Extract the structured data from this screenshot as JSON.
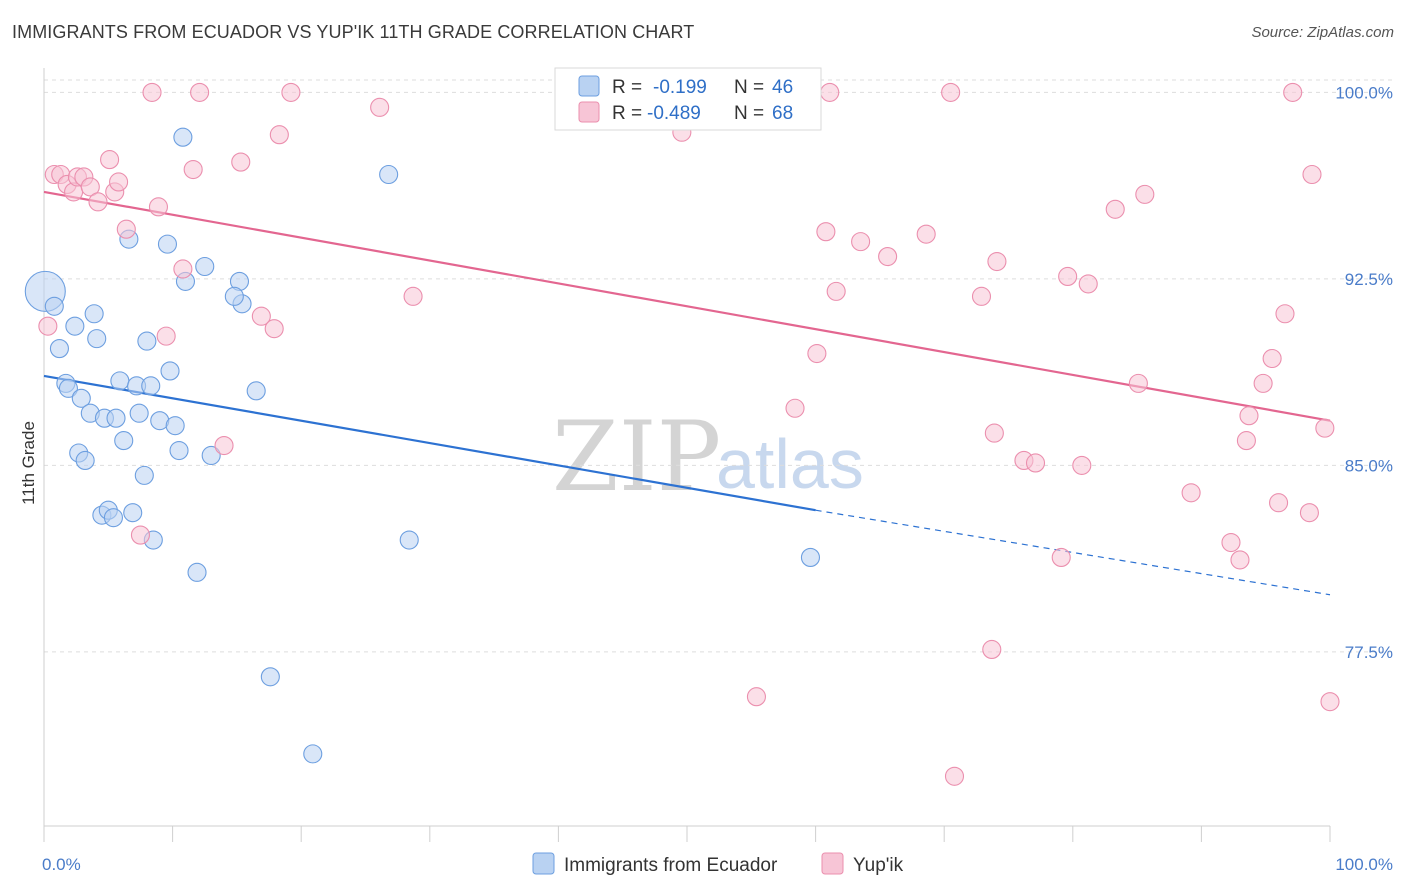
{
  "header": {
    "title": "IMMIGRANTS FROM ECUADOR VS YUP'IK 11TH GRADE CORRELATION CHART",
    "source": "Source: ZipAtlas.com"
  },
  "watermark": {
    "zip": "ZIP",
    "atlas": "atlas"
  },
  "legend": {
    "r_label": "R =",
    "n_label": "N =",
    "rows": [
      {
        "series": "ecuador",
        "r": "-0.199",
        "n": "46"
      },
      {
        "series": "yupik",
        "r": "-0.489",
        "n": "68"
      }
    ]
  },
  "colors": {
    "ecuador_fill": "#b9d2f2",
    "ecuador_stroke": "#6d9fe0",
    "ecuador_line": "#2d72d2",
    "yupik_fill": "#f7c5d6",
    "yupik_stroke": "#eb8fae",
    "yupik_line": "#e36690",
    "grid": "#dddddd",
    "tick_label": "#4a7cc9"
  },
  "chart_data": {
    "type": "scatter",
    "title": "IMMIGRANTS FROM ECUADOR VS YUP'IK 11TH GRADE CORRELATION CHART",
    "xlabel": "",
    "ylabel": "11th Grade",
    "xlim": [
      0,
      100
    ],
    "ylim": [
      70.5,
      100.5
    ],
    "x_tick_labels": [
      {
        "value": 0,
        "label": "0.0%"
      },
      {
        "value": 100,
        "label": "100.0%"
      }
    ],
    "y_tick_labels": [
      {
        "value": 100,
        "label": "100.0%"
      },
      {
        "value": 92.5,
        "label": "92.5%"
      },
      {
        "value": 85,
        "label": "85.0%"
      },
      {
        "value": 77.5,
        "label": "77.5%"
      }
    ],
    "series": [
      {
        "name": "Immigrants from Ecuador",
        "key": "ecuador",
        "r": -0.199,
        "n": 46,
        "trend": {
          "x0": 0,
          "y0": 88.6,
          "x1": 60,
          "y1": 83.2,
          "dash_to_x": 100,
          "dash_to_y": 79.8
        },
        "points": [
          [
            0.1,
            92.0
          ],
          [
            0.8,
            91.4
          ],
          [
            1.2,
            89.7
          ],
          [
            1.7,
            88.3
          ],
          [
            1.9,
            88.1
          ],
          [
            2.4,
            90.6
          ],
          [
            2.7,
            85.5
          ],
          [
            2.9,
            87.7
          ],
          [
            3.2,
            85.2
          ],
          [
            3.6,
            87.1
          ],
          [
            3.9,
            91.1
          ],
          [
            4.1,
            90.1
          ],
          [
            4.5,
            83.0
          ],
          [
            4.7,
            86.9
          ],
          [
            5.0,
            83.2
          ],
          [
            5.4,
            82.9
          ],
          [
            5.6,
            86.9
          ],
          [
            5.9,
            88.4
          ],
          [
            6.2,
            86.0
          ],
          [
            6.6,
            94.1
          ],
          [
            6.9,
            83.1
          ],
          [
            7.2,
            88.2
          ],
          [
            7.4,
            87.1
          ],
          [
            7.8,
            84.6
          ],
          [
            8.0,
            90.0
          ],
          [
            8.3,
            88.2
          ],
          [
            8.5,
            82.0
          ],
          [
            9.0,
            86.8
          ],
          [
            9.6,
            93.9
          ],
          [
            9.8,
            88.8
          ],
          [
            10.2,
            86.6
          ],
          [
            10.5,
            85.6
          ],
          [
            10.8,
            98.2
          ],
          [
            11.0,
            92.4
          ],
          [
            11.9,
            80.7
          ],
          [
            12.5,
            93.0
          ],
          [
            13.0,
            85.4
          ],
          [
            15.2,
            92.4
          ],
          [
            15.4,
            91.5
          ],
          [
            16.5,
            88.0
          ],
          [
            17.6,
            76.5
          ],
          [
            26.8,
            96.7
          ],
          [
            28.4,
            82.0
          ],
          [
            59.6,
            81.3
          ],
          [
            14.8,
            91.8
          ],
          [
            20.9,
            73.4
          ]
        ]
      },
      {
        "name": "Yup'ik",
        "key": "yupik",
        "r": -0.489,
        "n": 68,
        "trend": {
          "x0": 0,
          "y0": 96.0,
          "x1": 100,
          "y1": 86.8
        },
        "points": [
          [
            0.3,
            90.6
          ],
          [
            0.8,
            96.7
          ],
          [
            1.3,
            96.7
          ],
          [
            1.8,
            96.3
          ],
          [
            2.3,
            96.0
          ],
          [
            2.6,
            96.6
          ],
          [
            3.1,
            96.6
          ],
          [
            3.6,
            96.2
          ],
          [
            4.2,
            95.6
          ],
          [
            5.1,
            97.3
          ],
          [
            5.5,
            96.0
          ],
          [
            5.8,
            96.4
          ],
          [
            6.4,
            94.5
          ],
          [
            7.5,
            82.2
          ],
          [
            8.4,
            100.0
          ],
          [
            8.9,
            95.4
          ],
          [
            9.5,
            90.2
          ],
          [
            10.8,
            92.9
          ],
          [
            11.6,
            96.9
          ],
          [
            12.1,
            100.0
          ],
          [
            14.0,
            85.8
          ],
          [
            15.3,
            97.2
          ],
          [
            16.9,
            91.0
          ],
          [
            17.9,
            90.5
          ],
          [
            18.3,
            98.3
          ],
          [
            19.2,
            100.0
          ],
          [
            26.1,
            99.4
          ],
          [
            28.7,
            91.8
          ],
          [
            49.6,
            98.4
          ],
          [
            55.4,
            75.7
          ],
          [
            58.4,
            87.3
          ],
          [
            59.3,
            100.0
          ],
          [
            60.1,
            89.5
          ],
          [
            60.8,
            94.4
          ],
          [
            61.1,
            100.0
          ],
          [
            61.6,
            92.0
          ],
          [
            63.5,
            94.0
          ],
          [
            65.6,
            93.4
          ],
          [
            68.6,
            94.3
          ],
          [
            70.5,
            100.0
          ],
          [
            70.8,
            72.5
          ],
          [
            72.9,
            91.8
          ],
          [
            73.7,
            77.6
          ],
          [
            73.9,
            86.3
          ],
          [
            74.1,
            93.2
          ],
          [
            76.2,
            85.2
          ],
          [
            77.1,
            85.1
          ],
          [
            79.1,
            81.3
          ],
          [
            79.6,
            92.6
          ],
          [
            80.7,
            85.0
          ],
          [
            81.2,
            92.3
          ],
          [
            83.3,
            95.3
          ],
          [
            85.1,
            88.3
          ],
          [
            85.6,
            95.9
          ],
          [
            89.2,
            83.9
          ],
          [
            92.3,
            81.9
          ],
          [
            93.0,
            81.2
          ],
          [
            93.5,
            86.0
          ],
          [
            93.7,
            87.0
          ],
          [
            94.8,
            88.3
          ],
          [
            95.5,
            89.3
          ],
          [
            96.0,
            83.5
          ],
          [
            96.5,
            91.1
          ],
          [
            97.1,
            100.0
          ],
          [
            98.4,
            83.1
          ],
          [
            98.6,
            96.7
          ],
          [
            99.6,
            86.5
          ],
          [
            100.0,
            75.5
          ]
        ]
      }
    ]
  },
  "bottom_legend": {
    "items": [
      {
        "series": "ecuador",
        "label": "Immigrants from Ecuador"
      },
      {
        "series": "yupik",
        "label": "Yup'ik"
      }
    ]
  }
}
